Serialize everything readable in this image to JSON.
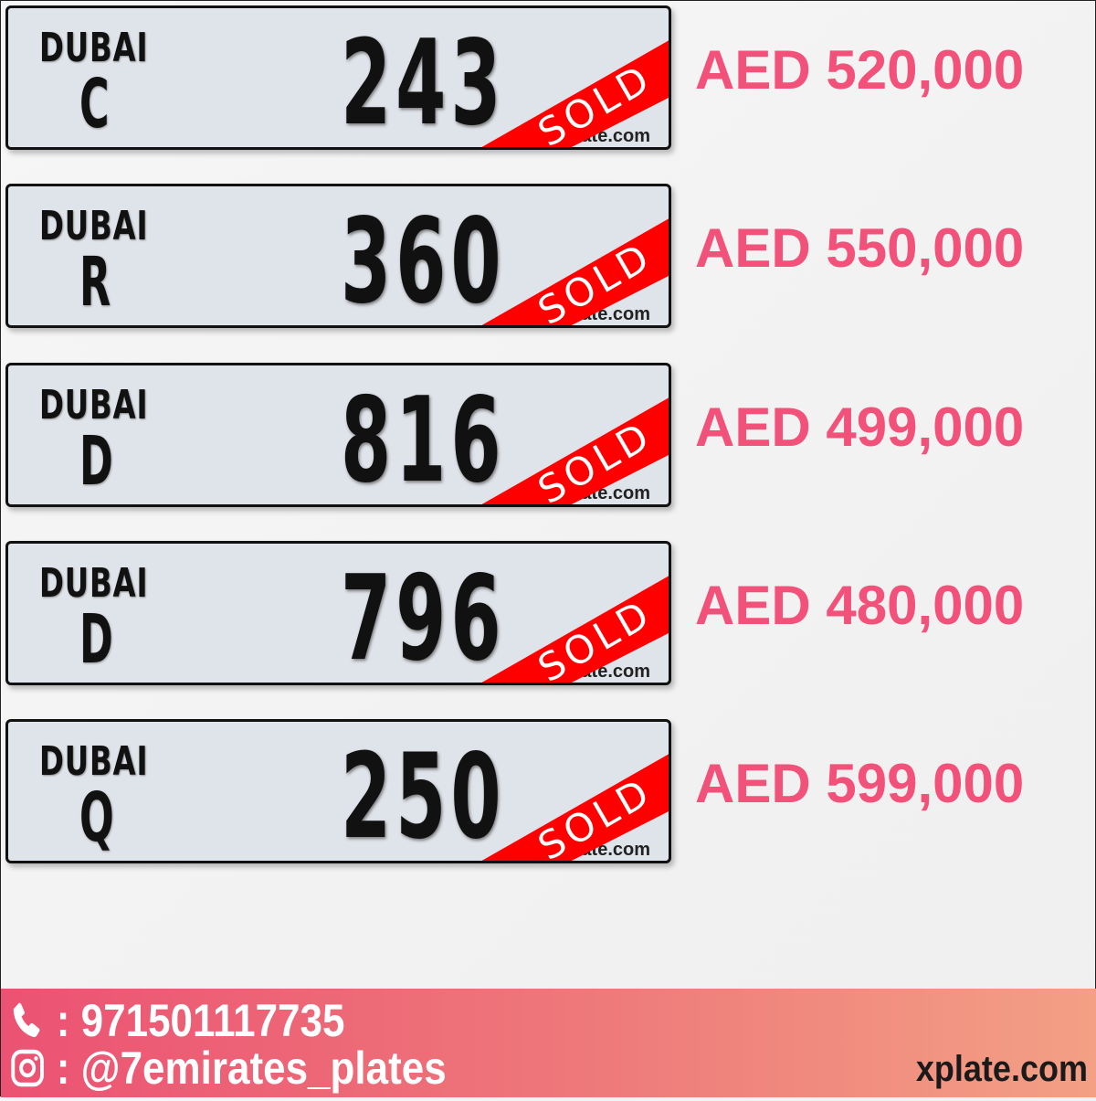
{
  "plates": [
    {
      "emirate": "DUBAI",
      "code": "C",
      "number": "243",
      "status": "SOLD",
      "watermark": "xplate.com",
      "price": "AED 520,000"
    },
    {
      "emirate": "DUBAI",
      "code": "R",
      "number": "360",
      "status": "SOLD",
      "watermark": "xplate.com",
      "price": "AED 550,000"
    },
    {
      "emirate": "DUBAI",
      "code": "D",
      "number": "816",
      "status": "SOLD",
      "watermark": "xplate.com",
      "price": "AED 499,000"
    },
    {
      "emirate": "DUBAI",
      "code": "D",
      "number": "796",
      "status": "SOLD",
      "watermark": "xplate.com",
      "price": "AED 480,000"
    },
    {
      "emirate": "DUBAI",
      "code": "Q",
      "number": "250",
      "status": "SOLD",
      "watermark": "xplate.com",
      "price": "AED 599,000"
    }
  ],
  "colors": {
    "price": "#f2527a",
    "sold_ribbon": "#ff0000",
    "footer_start": "#ec5273",
    "footer_end": "#f3a085"
  },
  "footer": {
    "phone_icon": "phone-icon",
    "phone": ": 971501117735",
    "instagram_icon": "instagram-icon",
    "instagram": ": @7emirates_plates",
    "site": "xplate.com"
  }
}
